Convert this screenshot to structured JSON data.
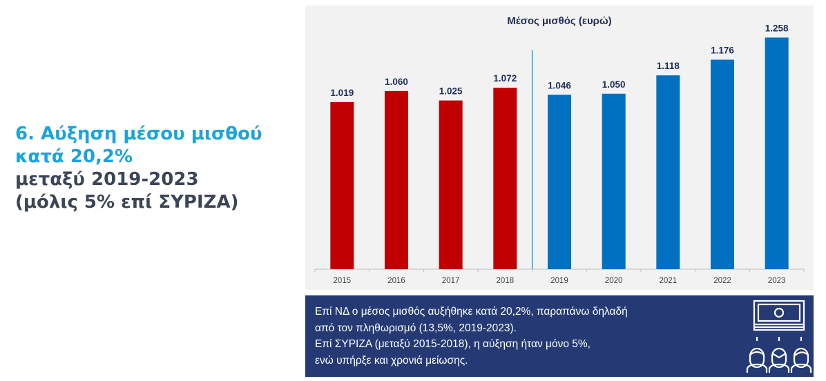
{
  "headline": {
    "line1": "6. Αύξηση μέσου μισθού",
    "line2": "κατά 20,2%",
    "line3": "μεταξύ 2019-2023",
    "line4": "(μόλις 5% επί ΣΥΡΙΖΑ)"
  },
  "colors": {
    "headline_accent": "#1aa3df",
    "headline_dark": "#3b4556",
    "bar_syriza": "#c00000",
    "bar_nd": "#0070c0",
    "divider": "#1aa3df",
    "note_bg": "#253a74",
    "panel_bg": "#f2f2f2"
  },
  "chart_data": {
    "type": "bar",
    "title": "Μέσος μισθός (ευρώ)",
    "xlabel": "",
    "ylabel": "",
    "categories": [
      "2015",
      "2016",
      "2017",
      "2018",
      "2019",
      "2020",
      "2021",
      "2022",
      "2023"
    ],
    "values": [
      1019,
      1060,
      1025,
      1072,
      1046,
      1050,
      1118,
      1176,
      1258
    ],
    "value_labels": [
      "1.019",
      "1.060",
      "1.025",
      "1.072",
      "1.046",
      "1.050",
      "1.118",
      "1.176",
      "1.258"
    ],
    "series_groups": [
      {
        "name": "ΣΥΡΙΖΑ",
        "categories": [
          "2015",
          "2016",
          "2017",
          "2018"
        ],
        "color": "#c00000"
      },
      {
        "name": "ΝΔ",
        "categories": [
          "2019",
          "2020",
          "2021",
          "2022",
          "2023"
        ],
        "color": "#0070c0"
      }
    ],
    "divider_between": [
      "2018",
      "2019"
    ],
    "ylim": [
      400,
      1300
    ],
    "grid": false,
    "legend": "none"
  },
  "note": {
    "line1": "Επί ΝΔ ο μέσος μισθός αυξήθηκε κατά 20,2%, παραπάνω δηλαδή",
    "line2": "από τον πληθωρισμό (13,5%, 2019-2023).",
    "line3": "Επί ΣΥΡΙΖΑ (μεταξύ 2015-2018), η αύξηση ήταν μόνο 5%,",
    "line4": "ενώ υπήρξε και χρονιά μείωσης.",
    "icon": "salary-people-icon"
  }
}
